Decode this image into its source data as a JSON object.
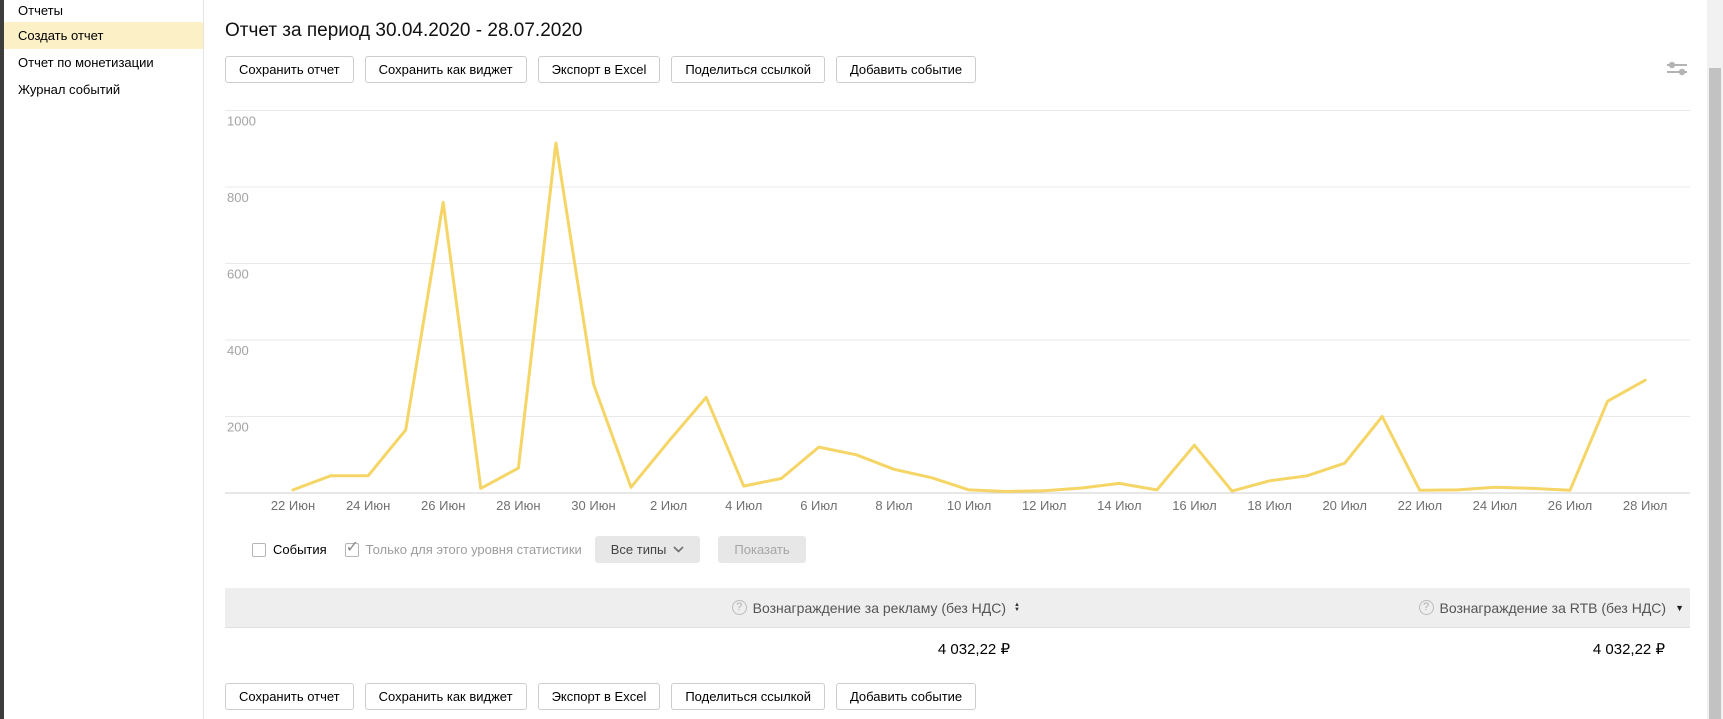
{
  "sidebar": {
    "items": [
      {
        "label": "Отчеты",
        "active": false
      },
      {
        "label": "Создать отчет",
        "active": true
      },
      {
        "label": "Отчет по монетизации",
        "active": false
      },
      {
        "label": "Журнал событий",
        "active": false
      }
    ]
  },
  "header": {
    "title": "Отчет за период 30.04.2020 - 28.07.2020"
  },
  "toolbar": {
    "buttons": [
      "Сохранить отчет",
      "Сохранить как виджет",
      "Экспорт в Excel",
      "Поделиться ссылкой",
      "Добавить событие"
    ]
  },
  "controls": {
    "events_label": "События",
    "events_checked": false,
    "only_level_label": "Только для этого уровня статистики",
    "only_level_checked": true,
    "type_filter_label": "Все типы",
    "show_button_label": "Показать"
  },
  "table": {
    "columns": [
      {
        "label": "Вознаграждение за рекламу (без НДС)",
        "sort": "both"
      },
      {
        "label": "Вознаграждение за RTB (без НДС)",
        "sort": "desc"
      }
    ],
    "values": [
      "4 032,22 ₽",
      "4 032,22 ₽"
    ]
  },
  "colors": {
    "line": "#f5d566",
    "sidebar_highlight": "#fbf0c6",
    "grid": "#e9e9e9",
    "axis": "#cfcfcf",
    "y_label": "#a3a3a3",
    "x_label": "#707070"
  },
  "chart_data": {
    "type": "line",
    "title": "",
    "xlabel": "",
    "ylabel": "",
    "ylim": [
      0,
      1000
    ],
    "yticks": [
      200,
      400,
      600,
      800,
      1000
    ],
    "x_tick_every": 2,
    "legend": "none",
    "grid": "horizontal",
    "categories": [
      "22 Июн",
      "23 Июн",
      "24 Июн",
      "25 Июн",
      "26 Июн",
      "27 Июн",
      "28 Июн",
      "29 Июн",
      "30 Июн",
      "1 Июл",
      "2 Июл",
      "3 Июл",
      "4 Июл",
      "5 Июл",
      "6 Июл",
      "7 Июл",
      "8 Июл",
      "9 Июл",
      "10 Июл",
      "11 Июл",
      "12 Июл",
      "13 Июл",
      "14 Июл",
      "15 Июл",
      "16 Июл",
      "17 Июл",
      "18 Июл",
      "19 Июл",
      "20 Июл",
      "21 Июл",
      "22 Июл",
      "23 Июл",
      "24 Июл",
      "25 Июл",
      "26 Июл",
      "27 Июл",
      "28 Июл"
    ],
    "values": [
      8,
      45,
      45,
      165,
      760,
      12,
      65,
      915,
      285,
      15,
      135,
      250,
      18,
      38,
      120,
      100,
      62,
      40,
      8,
      4,
      6,
      13,
      25,
      8,
      125,
      5,
      32,
      45,
      78,
      200,
      7,
      8,
      15,
      12,
      7,
      240,
      295
    ]
  }
}
